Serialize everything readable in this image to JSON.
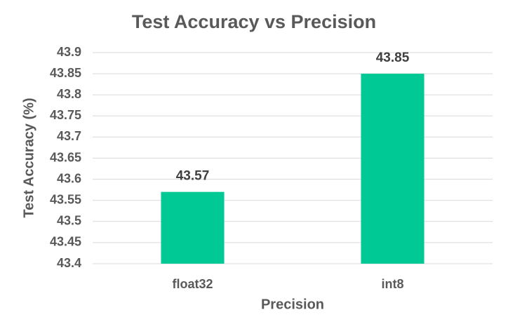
{
  "chart_data": {
    "type": "bar",
    "title": "Test Accuracy vs Precision",
    "x_label": "Precision",
    "y_label": "Test Accuracy (%)",
    "categories": [
      "float32",
      "int8"
    ],
    "values": [
      43.57,
      43.85
    ],
    "color": "#00c996",
    "ylim": [
      43.4,
      43.9
    ],
    "yticks": [
      43.4,
      43.45,
      43.5,
      43.55,
      43.6,
      43.65,
      43.7,
      43.75,
      43.8,
      43.85,
      43.9
    ],
    "grid": true
  }
}
